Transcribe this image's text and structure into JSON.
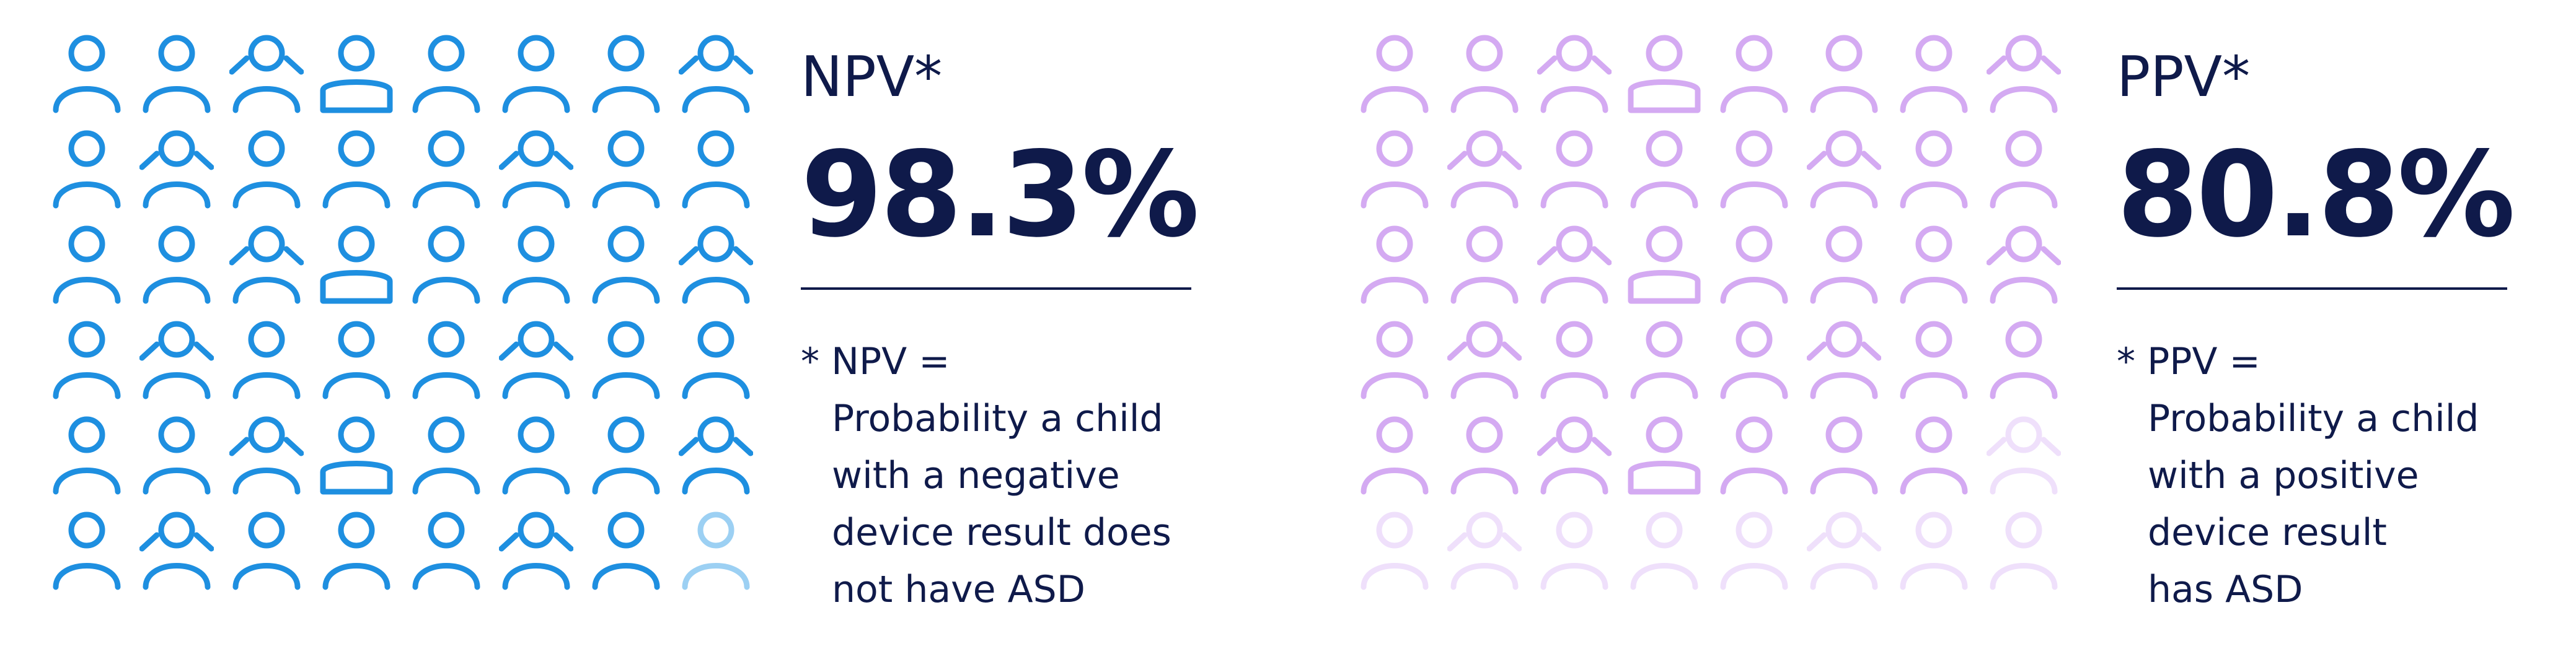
{
  "colors": {
    "blue": "#1e8fe0",
    "blue_faded": "#9cd0f3",
    "lilac": "#d4aaf2",
    "lilac_faded": "#efe0fb",
    "navy": "#0f1a4a"
  },
  "icon_grid": {
    "columns": 8,
    "rows": 6,
    "icon_name": "person-icon"
  },
  "npv": {
    "label": "NPV*",
    "value": "98.3%",
    "footnote_head": "* NPV =",
    "footnote_lines": [
      "Probability a child",
      "with a negative",
      "device result does",
      "not have ASD"
    ],
    "faded_icons": 1
  },
  "ppv": {
    "label": "PPV*",
    "value": "80.8%",
    "footnote_head": "* PPV =",
    "footnote_lines": [
      "Probability a child",
      "with a positive",
      "device result",
      "has ASD"
    ],
    "faded_icons": 9
  }
}
